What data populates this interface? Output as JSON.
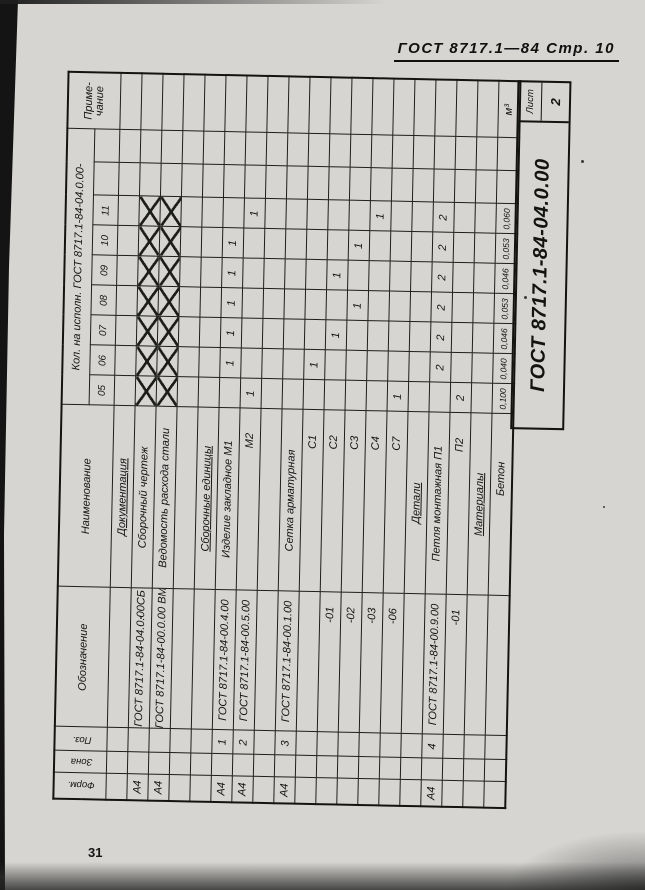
{
  "page": {
    "header": "ГОСТ 8717.1—84  Стр. 10",
    "page_number": "31"
  },
  "stamp": {
    "designation": "ГОСТ 8717.1-84-04.0.00",
    "sheet_label": "Лист",
    "sheet_number": "2"
  },
  "table": {
    "headers": {
      "format": "Форм.",
      "zone": "Зона",
      "pos": "Поз.",
      "designation": "Обозначение",
      "name": "Наименование",
      "qty_group": "Кол. на исполн. ГОСТ 8717.1-84-04.0.00-",
      "executions": [
        "05",
        "06",
        "07",
        "08",
        "09",
        "10",
        "11"
      ],
      "note_line1": "Приме-",
      "note_line2": "чание"
    },
    "rows": [
      {
        "type": "section",
        "name": "Документация"
      },
      {
        "type": "item",
        "format": "А4",
        "designation": "ГОСТ 8717.1-84-04.0.00СБ",
        "name": "Сборочный чертеж",
        "x_all": true
      },
      {
        "type": "item",
        "format": "А4",
        "designation": "ГОСТ 8717.1-84-00.0.00 ВМС",
        "name": "Ведомость расхода стали",
        "x_all": true
      },
      {
        "type": "blank"
      },
      {
        "type": "section",
        "name": "Сборочные единицы"
      },
      {
        "type": "item",
        "format": "А4",
        "pos": "1",
        "designation": "ГОСТ 8717.1-84-00.4.00",
        "name": "Изделие закладное М1",
        "qty": {
          "06": "1",
          "07": "1",
          "08": "1",
          "09": "1",
          "10": "1"
        }
      },
      {
        "type": "item",
        "format": "А4",
        "pos": "2",
        "designation": "ГОСТ 8717.1-84-00.5.00",
        "name": "М2",
        "sub": true,
        "qty": {
          "05": "1",
          "11": "1"
        }
      },
      {
        "type": "blank"
      },
      {
        "type": "item",
        "format": "А4",
        "pos": "3",
        "designation": "ГОСТ 8717.1-84-00.1.00",
        "name": "Сетка арматурная"
      },
      {
        "type": "item",
        "name": "С1",
        "sub": true,
        "qty": {
          "06": "1"
        }
      },
      {
        "type": "item",
        "designation": "-01",
        "name": "С2",
        "sub": true,
        "qty": {
          "07": "1",
          "09": "1"
        }
      },
      {
        "type": "item",
        "designation": "-02",
        "name": "С3",
        "sub": true,
        "qty": {
          "08": "1",
          "10": "1"
        }
      },
      {
        "type": "item",
        "designation": "-03",
        "name": "С4",
        "sub": true,
        "qty": {
          "11": "1"
        }
      },
      {
        "type": "item",
        "designation": "-06",
        "name": "С7",
        "sub": true,
        "qty": {
          "05": "1"
        }
      },
      {
        "type": "section",
        "name": "Детали"
      },
      {
        "type": "item",
        "format": "А4",
        "pos": "4",
        "designation": "ГОСТ 8717.1-84-00.9.00",
        "name": "Петля монтажная П1",
        "qty": {
          "06": "2",
          "07": "2",
          "08": "2",
          "09": "2",
          "10": "2",
          "11": "2"
        }
      },
      {
        "type": "item",
        "designation": "-01",
        "name": "П2",
        "sub": true,
        "qty": {
          "05": "2"
        }
      },
      {
        "type": "section",
        "name": "Материалы"
      },
      {
        "type": "item",
        "name": "Бетон",
        "mid": true,
        "qty": {
          "05": "0,100",
          "06": "0,040",
          "07": "0,046",
          "08": "0,053",
          "09": "0,046",
          "10": "0,053",
          "11": "0,060"
        },
        "note": "м³"
      }
    ]
  }
}
